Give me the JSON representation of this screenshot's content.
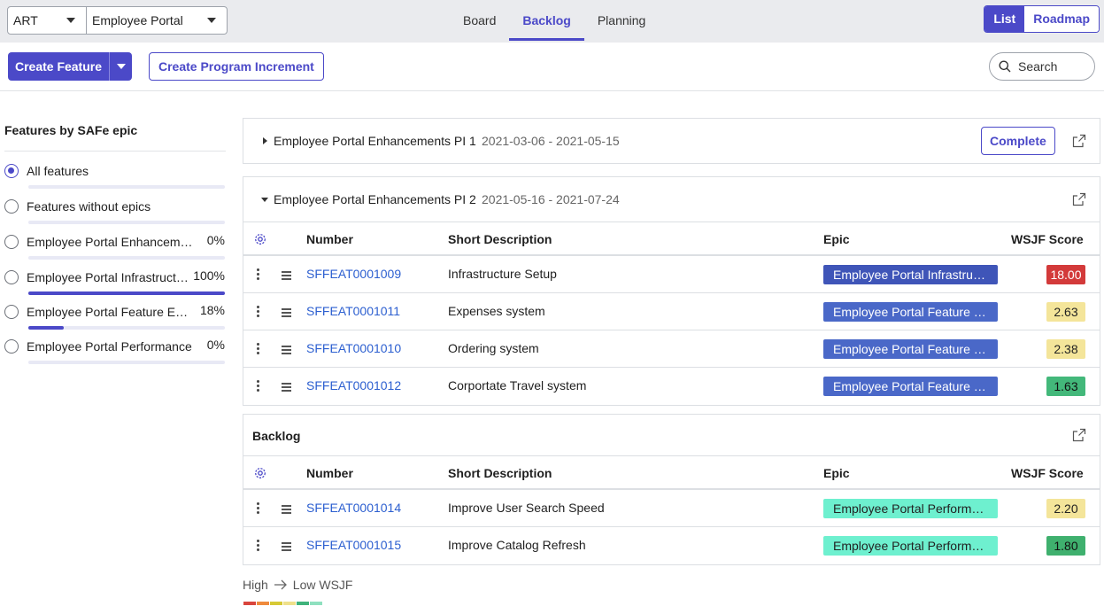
{
  "header": {
    "art_select": "ART",
    "portal_select": "Employee Portal",
    "tabs": [
      {
        "label": "Board",
        "active": false
      },
      {
        "label": "Backlog",
        "active": true
      },
      {
        "label": "Planning",
        "active": false
      }
    ],
    "view_toggle": {
      "list": "List",
      "roadmap": "Roadmap",
      "selected": "List"
    }
  },
  "actions": {
    "create_feature": "Create Feature",
    "create_pi": "Create Program Increment",
    "search_placeholder": "Search"
  },
  "filter_panel": {
    "title": "Features by SAFe epic",
    "items": [
      {
        "label": "All features",
        "percent": "",
        "progress": 0,
        "selected": true
      },
      {
        "label": "Features without epics",
        "percent": "",
        "progress": 0,
        "selected": false
      },
      {
        "label": "Employee Portal Enhancements",
        "percent": "0%",
        "progress": 0,
        "selected": false
      },
      {
        "label": "Employee Portal Infrastructure",
        "percent": "100%",
        "progress": 1.0,
        "selected": false
      },
      {
        "label": "Employee Portal Feature Enhancements",
        "percent": "18%",
        "progress": 0.18,
        "selected": false
      },
      {
        "label": "Employee Portal Performance",
        "percent": "0%",
        "progress": 0,
        "selected": false
      }
    ]
  },
  "columns": {
    "number": "Number",
    "short_description": "Short Description",
    "epic": "Epic",
    "wsjf": "WSJF Score"
  },
  "pi1": {
    "name": "Employee Portal Enhancements PI 1",
    "dates": "2021-03-06 - 2021-05-15",
    "complete_label": "Complete"
  },
  "pi2": {
    "name": "Employee Portal Enhancements PI 2",
    "dates": "2021-05-16 - 2021-07-24",
    "rows": [
      {
        "number": "SFFEAT0001009",
        "description": "Infrastructure Setup",
        "epic": "Employee Portal Infrastructure",
        "score": "18.00"
      },
      {
        "number": "SFFEAT0001011",
        "description": "Expenses system",
        "epic": "Employee Portal Feature Enhancements",
        "score": "2.63"
      },
      {
        "number": "SFFEAT0001010",
        "description": "Ordering system",
        "epic": "Employee Portal Feature Enhancements",
        "score": "2.38"
      },
      {
        "number": "SFFEAT0001012",
        "description": "Corportate Travel system",
        "epic": "Employee Portal Feature Enhancements",
        "score": "1.63"
      }
    ]
  },
  "backlog": {
    "name": "Backlog",
    "rows": [
      {
        "number": "SFFEAT0001014",
        "description": "Improve User Search Speed",
        "epic": "Employee Portal Performance",
        "score": "2.20"
      },
      {
        "number": "SFFEAT0001015",
        "description": "Improve Catalog Refresh",
        "epic": "Employee Portal Performance",
        "score": "1.80"
      }
    ]
  },
  "legend": {
    "high": "High",
    "low": "Low WSJF",
    "scale_colors": [
      "#d9453d",
      "#ef8a3c",
      "#d6c935",
      "#efe08a",
      "#3fb37b",
      "#8fe0bf"
    ]
  },
  "colors": {
    "accent": "#4b49c8",
    "epic_infra": "#3f55b8",
    "epic_feature": "#4a68c8",
    "epic_perf": "#6ef0cf",
    "score_red": "#d33a3a",
    "score_yellow": "#f4e59a",
    "score_green_dark": "#3fb06e",
    "score_green": "#43b87a"
  }
}
